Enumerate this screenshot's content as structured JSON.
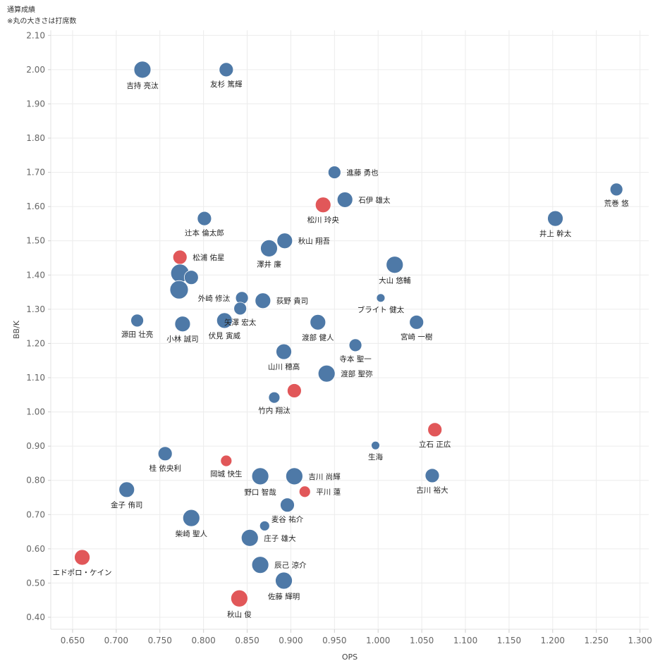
{
  "header": {
    "title": "通算成績",
    "note": "※丸の大きさは打席数"
  },
  "colors": {
    "blue": "#4e79a7",
    "red": "#e15759",
    "grid": "#ececec"
  },
  "chart_data": {
    "type": "scatter",
    "title": "通算成績",
    "subtitle": "※丸の大きさは打席数",
    "xlabel": "OPS",
    "ylabel": "BB/K",
    "xlim": [
      0.625,
      1.31
    ],
    "ylim": [
      0.365,
      2.115
    ],
    "xticks": [
      "0.650",
      "0.700",
      "0.750",
      "0.800",
      "0.850",
      "0.900",
      "0.950",
      "1.000",
      "1.050",
      "1.100",
      "1.150",
      "1.200",
      "1.250",
      "1.300"
    ],
    "yticks": [
      "0.40",
      "0.50",
      "0.60",
      "0.70",
      "0.80",
      "0.90",
      "1.00",
      "1.10",
      "1.20",
      "1.30",
      "1.40",
      "1.50",
      "1.60",
      "1.70",
      "1.80",
      "1.90",
      "2.00",
      "2.10"
    ],
    "grid": true,
    "points": [
      {
        "name": "吉持 亮汰",
        "ops": 0.73,
        "bbk": 2.0,
        "size": 12,
        "color": "blue",
        "label": "below"
      },
      {
        "name": "友杉 篤輝",
        "ops": 0.826,
        "bbk": 2.0,
        "size": 10,
        "color": "blue",
        "label": "below"
      },
      {
        "name": "進藤 勇也",
        "ops": 0.95,
        "bbk": 1.7,
        "size": 9,
        "color": "blue",
        "label": "right"
      },
      {
        "name": "石伊 雄太",
        "ops": 0.962,
        "bbk": 1.62,
        "size": 11,
        "color": "blue",
        "label": "right"
      },
      {
        "name": "松川 玲央",
        "ops": 0.937,
        "bbk": 1.605,
        "size": 11,
        "color": "red",
        "label": "below"
      },
      {
        "name": "荒巻 悠",
        "ops": 1.273,
        "bbk": 1.65,
        "size": 9,
        "color": "blue",
        "label": "below"
      },
      {
        "name": "井上 幹太",
        "ops": 1.203,
        "bbk": 1.565,
        "size": 11,
        "color": "blue",
        "label": "below"
      },
      {
        "name": "辻本 倫太郎",
        "ops": 0.801,
        "bbk": 1.565,
        "size": 10,
        "color": "blue",
        "label": "below"
      },
      {
        "name": "秋山 翔吾",
        "ops": 0.893,
        "bbk": 1.5,
        "size": 11,
        "color": "blue",
        "label": "right"
      },
      {
        "name": "澤井 廉",
        "ops": 0.875,
        "bbk": 1.478,
        "size": 12,
        "color": "blue",
        "label": "below"
      },
      {
        "name": "松浦 佑星",
        "ops": 0.773,
        "bbk": 1.452,
        "size": 10,
        "color": "red",
        "label": "right"
      },
      {
        "name": "大山 悠輔",
        "ops": 1.019,
        "bbk": 1.43,
        "size": 12,
        "color": "blue",
        "label": "below"
      },
      {
        "name": "",
        "ops": 0.773,
        "bbk": 1.405,
        "size": 13,
        "color": "blue",
        "label": "none"
      },
      {
        "name": "",
        "ops": 0.786,
        "bbk": 1.393,
        "size": 10,
        "color": "blue",
        "label": "none"
      },
      {
        "name": "",
        "ops": 0.772,
        "bbk": 1.357,
        "size": 13,
        "color": "blue",
        "label": "none"
      },
      {
        "name": "外崎 修汰",
        "ops": 0.844,
        "bbk": 1.333,
        "size": 9,
        "color": "blue",
        "label": "left"
      },
      {
        "name": "荻野 貴司",
        "ops": 0.868,
        "bbk": 1.325,
        "size": 11,
        "color": "blue",
        "label": "right"
      },
      {
        "name": "ブライト 健太",
        "ops": 1.003,
        "bbk": 1.333,
        "size": 6,
        "color": "blue",
        "label": "below"
      },
      {
        "name": "矢澤 宏太",
        "ops": 0.842,
        "bbk": 1.302,
        "size": 9,
        "color": "blue",
        "label": "below"
      },
      {
        "name": "源田 壮亮",
        "ops": 0.724,
        "bbk": 1.267,
        "size": 9,
        "color": "blue",
        "label": "below"
      },
      {
        "name": "伏見 寅威",
        "ops": 0.824,
        "bbk": 1.267,
        "size": 11,
        "color": "blue",
        "label": "below"
      },
      {
        "name": "小林 誠司",
        "ops": 0.776,
        "bbk": 1.257,
        "size": 11,
        "color": "blue",
        "label": "below"
      },
      {
        "name": "渡部 健人",
        "ops": 0.931,
        "bbk": 1.262,
        "size": 11,
        "color": "blue",
        "label": "below"
      },
      {
        "name": "宮崎 一樹",
        "ops": 1.044,
        "bbk": 1.262,
        "size": 10,
        "color": "blue",
        "label": "below"
      },
      {
        "name": "寺本 聖一",
        "ops": 0.974,
        "bbk": 1.195,
        "size": 9,
        "color": "blue",
        "label": "below"
      },
      {
        "name": "山川 穂高",
        "ops": 0.892,
        "bbk": 1.176,
        "size": 11,
        "color": "blue",
        "label": "below"
      },
      {
        "name": "渡部 聖弥",
        "ops": 0.941,
        "bbk": 1.112,
        "size": 12,
        "color": "blue",
        "label": "right"
      },
      {
        "name": "",
        "ops": 0.904,
        "bbk": 1.062,
        "size": 10,
        "color": "red",
        "label": "none"
      },
      {
        "name": "竹内 翔汰",
        "ops": 0.881,
        "bbk": 1.042,
        "size": 8,
        "color": "blue",
        "label": "below"
      },
      {
        "name": "立石 正広",
        "ops": 1.065,
        "bbk": 0.948,
        "size": 10,
        "color": "red",
        "label": "below"
      },
      {
        "name": "生海",
        "ops": 0.997,
        "bbk": 0.902,
        "size": 6,
        "color": "blue",
        "label": "below"
      },
      {
        "name": "桂 依央利",
        "ops": 0.756,
        "bbk": 0.878,
        "size": 10,
        "color": "blue",
        "label": "below"
      },
      {
        "name": "岡城 快生",
        "ops": 0.826,
        "bbk": 0.857,
        "size": 8,
        "color": "red",
        "label": "below"
      },
      {
        "name": "野口 智哉",
        "ops": 0.865,
        "bbk": 0.812,
        "size": 12,
        "color": "blue",
        "label": "below"
      },
      {
        "name": "吉川 尚輝",
        "ops": 0.904,
        "bbk": 0.812,
        "size": 12,
        "color": "blue",
        "label": "right"
      },
      {
        "name": "古川 裕大",
        "ops": 1.062,
        "bbk": 0.814,
        "size": 10,
        "color": "blue",
        "label": "below"
      },
      {
        "name": "金子 侑司",
        "ops": 0.712,
        "bbk": 0.773,
        "size": 11,
        "color": "blue",
        "label": "below"
      },
      {
        "name": "平川 蓮",
        "ops": 0.916,
        "bbk": 0.767,
        "size": 8,
        "color": "red",
        "label": "right"
      },
      {
        "name": "麦谷 祐介",
        "ops": 0.896,
        "bbk": 0.728,
        "size": 10,
        "color": "blue",
        "label": "below"
      },
      {
        "name": "柴崎 聖人",
        "ops": 0.786,
        "bbk": 0.69,
        "size": 12,
        "color": "blue",
        "label": "below"
      },
      {
        "name": "",
        "ops": 0.87,
        "bbk": 0.667,
        "size": 7,
        "color": "blue",
        "label": "none"
      },
      {
        "name": "庄子 雄大",
        "ops": 0.853,
        "bbk": 0.632,
        "size": 12,
        "color": "blue",
        "label": "right"
      },
      {
        "name": "エドポロ・ケイン",
        "ops": 0.661,
        "bbk": 0.575,
        "size": 11,
        "color": "red",
        "label": "below"
      },
      {
        "name": "辰己 涼介",
        "ops": 0.865,
        "bbk": 0.553,
        "size": 12,
        "color": "blue",
        "label": "right"
      },
      {
        "name": "佐藤 輝明",
        "ops": 0.892,
        "bbk": 0.507,
        "size": 12,
        "color": "blue",
        "label": "below"
      },
      {
        "name": "秋山 俊",
        "ops": 0.841,
        "bbk": 0.455,
        "size": 12,
        "color": "red",
        "label": "below"
      }
    ]
  }
}
